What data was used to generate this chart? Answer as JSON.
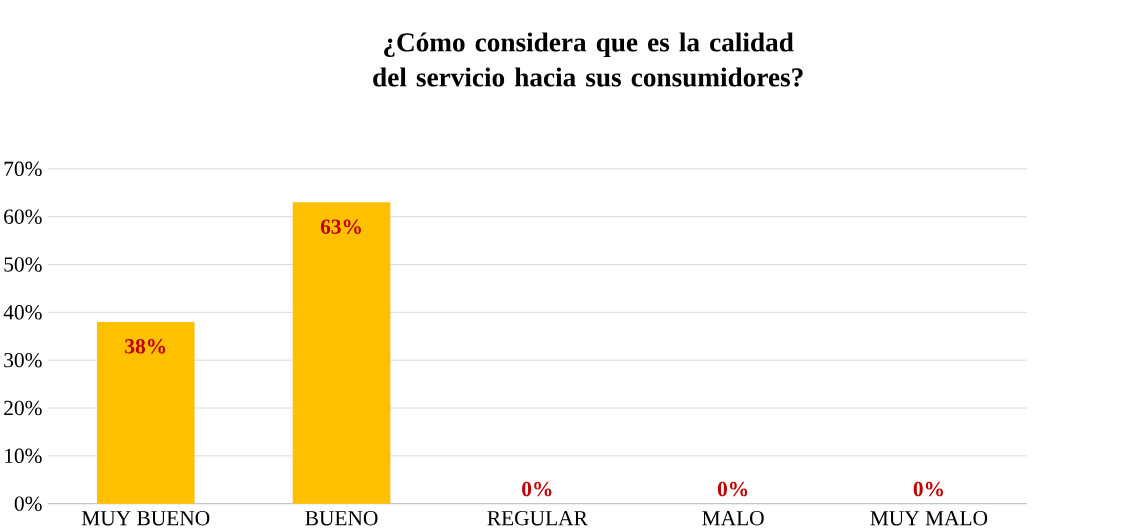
{
  "chart_data": {
    "type": "bar",
    "title": "¿Cómo considera que es la calidad del servicio hacia sus consumidores?",
    "categories": [
      "MUY BUENO",
      "BUENO",
      "REGULAR",
      "MALO",
      "MUY MALO"
    ],
    "values": [
      38,
      63,
      0,
      0,
      0
    ],
    "value_labels": [
      "38%",
      "63%",
      "0%",
      "0%",
      "0%"
    ],
    "color": "#ffc000",
    "ylim": [
      0,
      70
    ],
    "yticks": [
      {
        "value": 0,
        "label": "0%"
      },
      {
        "value": 10,
        "label": "10%"
      },
      {
        "value": 20,
        "label": "20%"
      },
      {
        "value": 30,
        "label": "30%"
      },
      {
        "value": 40,
        "label": "40%"
      },
      {
        "value": 50,
        "label": "50%"
      },
      {
        "value": 60,
        "label": "60%"
      },
      {
        "value": 70,
        "label": "70%"
      }
    ],
    "grid": "y"
  }
}
